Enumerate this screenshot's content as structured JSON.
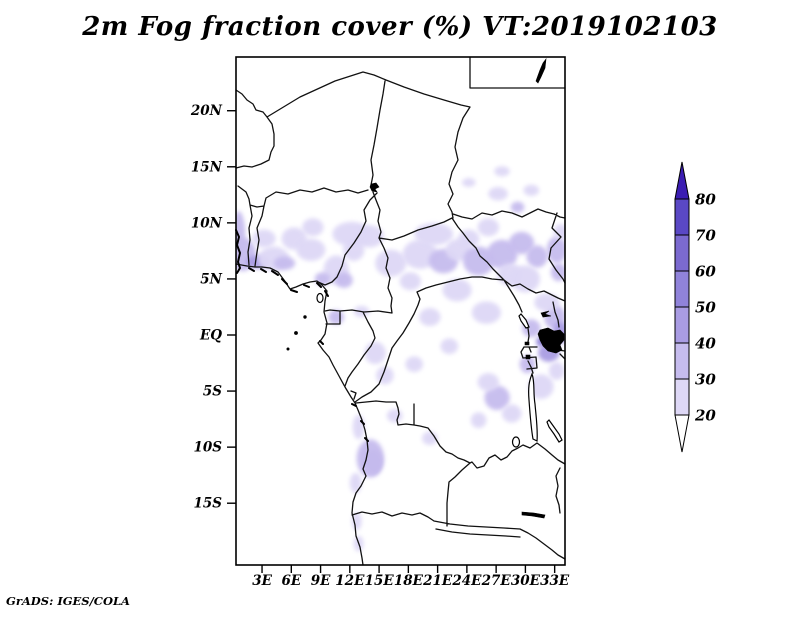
{
  "title": "2m Fog fraction cover (%) VT:2019102103",
  "credit": "GrADS: IGES/COLA",
  "chart_data": {
    "type": "heatmap",
    "title": "2m Fog fraction cover (%)",
    "valid_time": "VT:2019102103",
    "units": "%",
    "projection": "latlon",
    "lon_range": [
      0.3,
      34.0
    ],
    "lat_range": [
      -20.5,
      24.8
    ],
    "grid": false,
    "legend_position": "right",
    "lat_ticks": [
      {
        "label": "20N",
        "lat": 20
      },
      {
        "label": "15N",
        "lat": 15
      },
      {
        "label": "10N",
        "lat": 10
      },
      {
        "label": "5N",
        "lat": 5
      },
      {
        "label": "EQ",
        "lat": 0
      },
      {
        "label": "5S",
        "lat": -5
      },
      {
        "label": "10S",
        "lat": -10
      },
      {
        "label": "15S",
        "lat": -15
      }
    ],
    "lon_ticks": [
      {
        "label": "3E",
        "lon": 3
      },
      {
        "label": "6E",
        "lon": 6
      },
      {
        "label": "9E",
        "lon": 9
      },
      {
        "label": "12E",
        "lon": 12
      },
      {
        "label": "15E",
        "lon": 15
      },
      {
        "label": "18E",
        "lon": 18
      },
      {
        "label": "21E",
        "lon": 21
      },
      {
        "label": "24E",
        "lon": 24
      },
      {
        "label": "27E",
        "lon": 27
      },
      {
        "label": "30E",
        "lon": 30
      },
      {
        "label": "33E",
        "lon": 33
      }
    ],
    "levels": [
      20,
      30,
      40,
      50,
      60,
      70,
      80
    ],
    "palette": [
      {
        "min": 20,
        "color": "#ded8f6"
      },
      {
        "min": 30,
        "color": "#c6bcee"
      },
      {
        "min": 40,
        "color": "#a99ce3"
      },
      {
        "min": 50,
        "color": "#9083da"
      },
      {
        "min": 60,
        "color": "#7b6ad0"
      },
      {
        "min": 70,
        "color": "#5a48c5"
      },
      {
        "min": 80,
        "color": "#3b1db2"
      }
    ],
    "below_min_color": "#ffffff",
    "fog_regions": [
      {
        "lon": 1.0,
        "lat": 7.2,
        "w": 2.8,
        "h": 3.0,
        "v": 30
      },
      {
        "lon": 0.6,
        "lat": 8.8,
        "w": 1.4,
        "h": 4.5,
        "v": 30
      },
      {
        "lon": 2.6,
        "lat": 6.5,
        "w": 2.4,
        "h": 1.2,
        "v": 40
      },
      {
        "lon": 4.2,
        "lat": 6.8,
        "w": 3.2,
        "h": 2.2,
        "v": 20
      },
      {
        "lon": 3.2,
        "lat": 8.6,
        "w": 2.4,
        "h": 1.6,
        "v": 20
      },
      {
        "lon": 6.3,
        "lat": 8.6,
        "w": 2.6,
        "h": 2.0,
        "v": 20
      },
      {
        "lon": 8.2,
        "lat": 9.6,
        "w": 2.2,
        "h": 1.6,
        "v": 20
      },
      {
        "lon": 5.3,
        "lat": 6.4,
        "w": 2.2,
        "h": 1.2,
        "v": 30
      },
      {
        "lon": 10.6,
        "lat": 5.8,
        "w": 2.6,
        "h": 2.6,
        "v": 20
      },
      {
        "lon": 11.4,
        "lat": 4.9,
        "w": 1.8,
        "h": 1.4,
        "v": 30
      },
      {
        "lon": 12.4,
        "lat": 7.6,
        "w": 2.2,
        "h": 2.0,
        "v": 20
      },
      {
        "lon": 9.2,
        "lat": 5.0,
        "w": 1.6,
        "h": 1.2,
        "v": 30
      },
      {
        "lon": 14.0,
        "lat": 8.8,
        "w": 3.0,
        "h": 2.0,
        "v": 20
      },
      {
        "lon": 16.2,
        "lat": 6.4,
        "w": 3.2,
        "h": 2.4,
        "v": 20
      },
      {
        "lon": 19.2,
        "lat": 7.2,
        "w": 3.6,
        "h": 2.6,
        "v": 20
      },
      {
        "lon": 21.6,
        "lat": 6.6,
        "w": 3.0,
        "h": 2.2,
        "v": 30
      },
      {
        "lon": 23.2,
        "lat": 7.6,
        "w": 2.8,
        "h": 2.0,
        "v": 20
      },
      {
        "lon": 18.2,
        "lat": 4.8,
        "w": 2.2,
        "h": 1.6,
        "v": 20
      },
      {
        "lon": 25.2,
        "lat": 6.6,
        "w": 3.2,
        "h": 2.6,
        "v": 30
      },
      {
        "lon": 24.2,
        "lat": 8.6,
        "w": 2.2,
        "h": 1.6,
        "v": 20
      },
      {
        "lon": 27.6,
        "lat": 7.2,
        "w": 3.2,
        "h": 2.6,
        "v": 30
      },
      {
        "lon": 29.6,
        "lat": 8.2,
        "w": 2.6,
        "h": 2.0,
        "v": 30
      },
      {
        "lon": 28.4,
        "lat": 5.4,
        "w": 2.6,
        "h": 2.0,
        "v": 20
      },
      {
        "lon": 31.2,
        "lat": 7.0,
        "w": 2.2,
        "h": 2.0,
        "v": 30
      },
      {
        "lon": 26.2,
        "lat": 9.6,
        "w": 2.2,
        "h": 1.6,
        "v": 20
      },
      {
        "lon": 29.2,
        "lat": 11.4,
        "w": 1.4,
        "h": 1.0,
        "v": 30
      },
      {
        "lon": 27.2,
        "lat": 12.6,
        "w": 2.0,
        "h": 1.2,
        "v": 20
      },
      {
        "lon": 30.6,
        "lat": 12.9,
        "w": 1.6,
        "h": 1.0,
        "v": 20
      },
      {
        "lon": 33.2,
        "lat": 7.6,
        "w": 2.0,
        "h": 2.4,
        "v": 30
      },
      {
        "lon": 33.6,
        "lat": 9.2,
        "w": 1.4,
        "h": 1.4,
        "v": 20
      },
      {
        "lon": 33.4,
        "lat": 5.6,
        "w": 1.6,
        "h": 1.6,
        "v": 30
      },
      {
        "lon": 33.0,
        "lat": 1.6,
        "w": 2.2,
        "h": 2.2,
        "v": 30
      },
      {
        "lon": 32.2,
        "lat": 2.9,
        "w": 2.6,
        "h": 1.6,
        "v": 20
      },
      {
        "lon": 33.6,
        "lat": 0.2,
        "w": 1.6,
        "h": 2.0,
        "v": 40
      },
      {
        "lon": 30.6,
        "lat": 0.6,
        "w": 1.9,
        "h": 1.6,
        "v": 30
      },
      {
        "lon": 32.4,
        "lat": -1.6,
        "w": 2.2,
        "h": 1.6,
        "v": 40
      },
      {
        "lon": 31.6,
        "lat": -0.6,
        "w": 1.0,
        "h": 0.9,
        "v": 50
      },
      {
        "lon": 30.2,
        "lat": -2.6,
        "w": 1.6,
        "h": 1.6,
        "v": 30
      },
      {
        "lon": 31.6,
        "lat": -4.6,
        "w": 2.6,
        "h": 2.2,
        "v": 20
      },
      {
        "lon": 27.1,
        "lat": -5.6,
        "w": 2.6,
        "h": 2.2,
        "v": 30
      },
      {
        "lon": 26.2,
        "lat": -4.2,
        "w": 2.2,
        "h": 1.6,
        "v": 20
      },
      {
        "lon": 28.6,
        "lat": -7.0,
        "w": 2.0,
        "h": 1.6,
        "v": 20
      },
      {
        "lon": 33.2,
        "lat": -3.2,
        "w": 1.6,
        "h": 1.6,
        "v": 20
      },
      {
        "lon": 25.2,
        "lat": -7.6,
        "w": 1.6,
        "h": 1.4,
        "v": 20
      },
      {
        "lon": 14.6,
        "lat": -1.6,
        "w": 2.2,
        "h": 2.0,
        "v": 20
      },
      {
        "lon": 15.6,
        "lat": -3.6,
        "w": 1.8,
        "h": 1.6,
        "v": 20
      },
      {
        "lon": 10.6,
        "lat": 1.6,
        "w": 1.6,
        "h": 1.3,
        "v": 30
      },
      {
        "lon": 13.2,
        "lat": 2.1,
        "w": 1.6,
        "h": 1.0,
        "v": 20
      },
      {
        "lon": 20.2,
        "lat": 1.6,
        "w": 2.2,
        "h": 1.6,
        "v": 20
      },
      {
        "lon": 22.2,
        "lat": -1.0,
        "w": 1.8,
        "h": 1.4,
        "v": 20
      },
      {
        "lon": 18.6,
        "lat": -2.6,
        "w": 1.8,
        "h": 1.4,
        "v": 20
      },
      {
        "lon": 27.6,
        "lat": 14.6,
        "w": 1.6,
        "h": 0.9,
        "v": 20
      },
      {
        "lon": 24.2,
        "lat": 13.6,
        "w": 1.4,
        "h": 0.8,
        "v": 20
      },
      {
        "lon": 14.4,
        "lat": -11.3,
        "w": 1.8,
        "h": 2.2,
        "v": 40
      },
      {
        "lon": 14.1,
        "lat": -11.0,
        "w": 2.8,
        "h": 3.4,
        "v": 30
      },
      {
        "lon": 12.9,
        "lat": -8.2,
        "w": 1.2,
        "h": 2.2,
        "v": 20
      },
      {
        "lon": 12.6,
        "lat": -13.2,
        "w": 1.2,
        "h": 1.8,
        "v": 20
      },
      {
        "lon": 12.7,
        "lat": -16.6,
        "w": 1.0,
        "h": 1.6,
        "v": 20
      },
      {
        "lon": 12.9,
        "lat": -18.6,
        "w": 1.0,
        "h": 1.4,
        "v": 20
      },
      {
        "lon": 16.6,
        "lat": -7.2,
        "w": 1.6,
        "h": 1.2,
        "v": 20
      },
      {
        "lon": 20.2,
        "lat": -9.2,
        "w": 1.6,
        "h": 1.2,
        "v": 20
      },
      {
        "lon": 12.2,
        "lat": 9.0,
        "w": 4.0,
        "h": 2.2,
        "v": 20
      },
      {
        "lon": 20.6,
        "lat": 9.0,
        "w": 4.0,
        "h": 2.0,
        "v": 20
      },
      {
        "lon": 8.0,
        "lat": 7.6,
        "w": 3.0,
        "h": 2.0,
        "v": 20
      },
      {
        "lon": 30.0,
        "lat": 5.0,
        "w": 3.0,
        "h": 2.4,
        "v": 20
      },
      {
        "lon": 26.0,
        "lat": 2.0,
        "w": 3.0,
        "h": 2.0,
        "v": 20
      },
      {
        "lon": 23.0,
        "lat": 4.0,
        "w": 3.0,
        "h": 2.0,
        "v": 20
      }
    ]
  }
}
